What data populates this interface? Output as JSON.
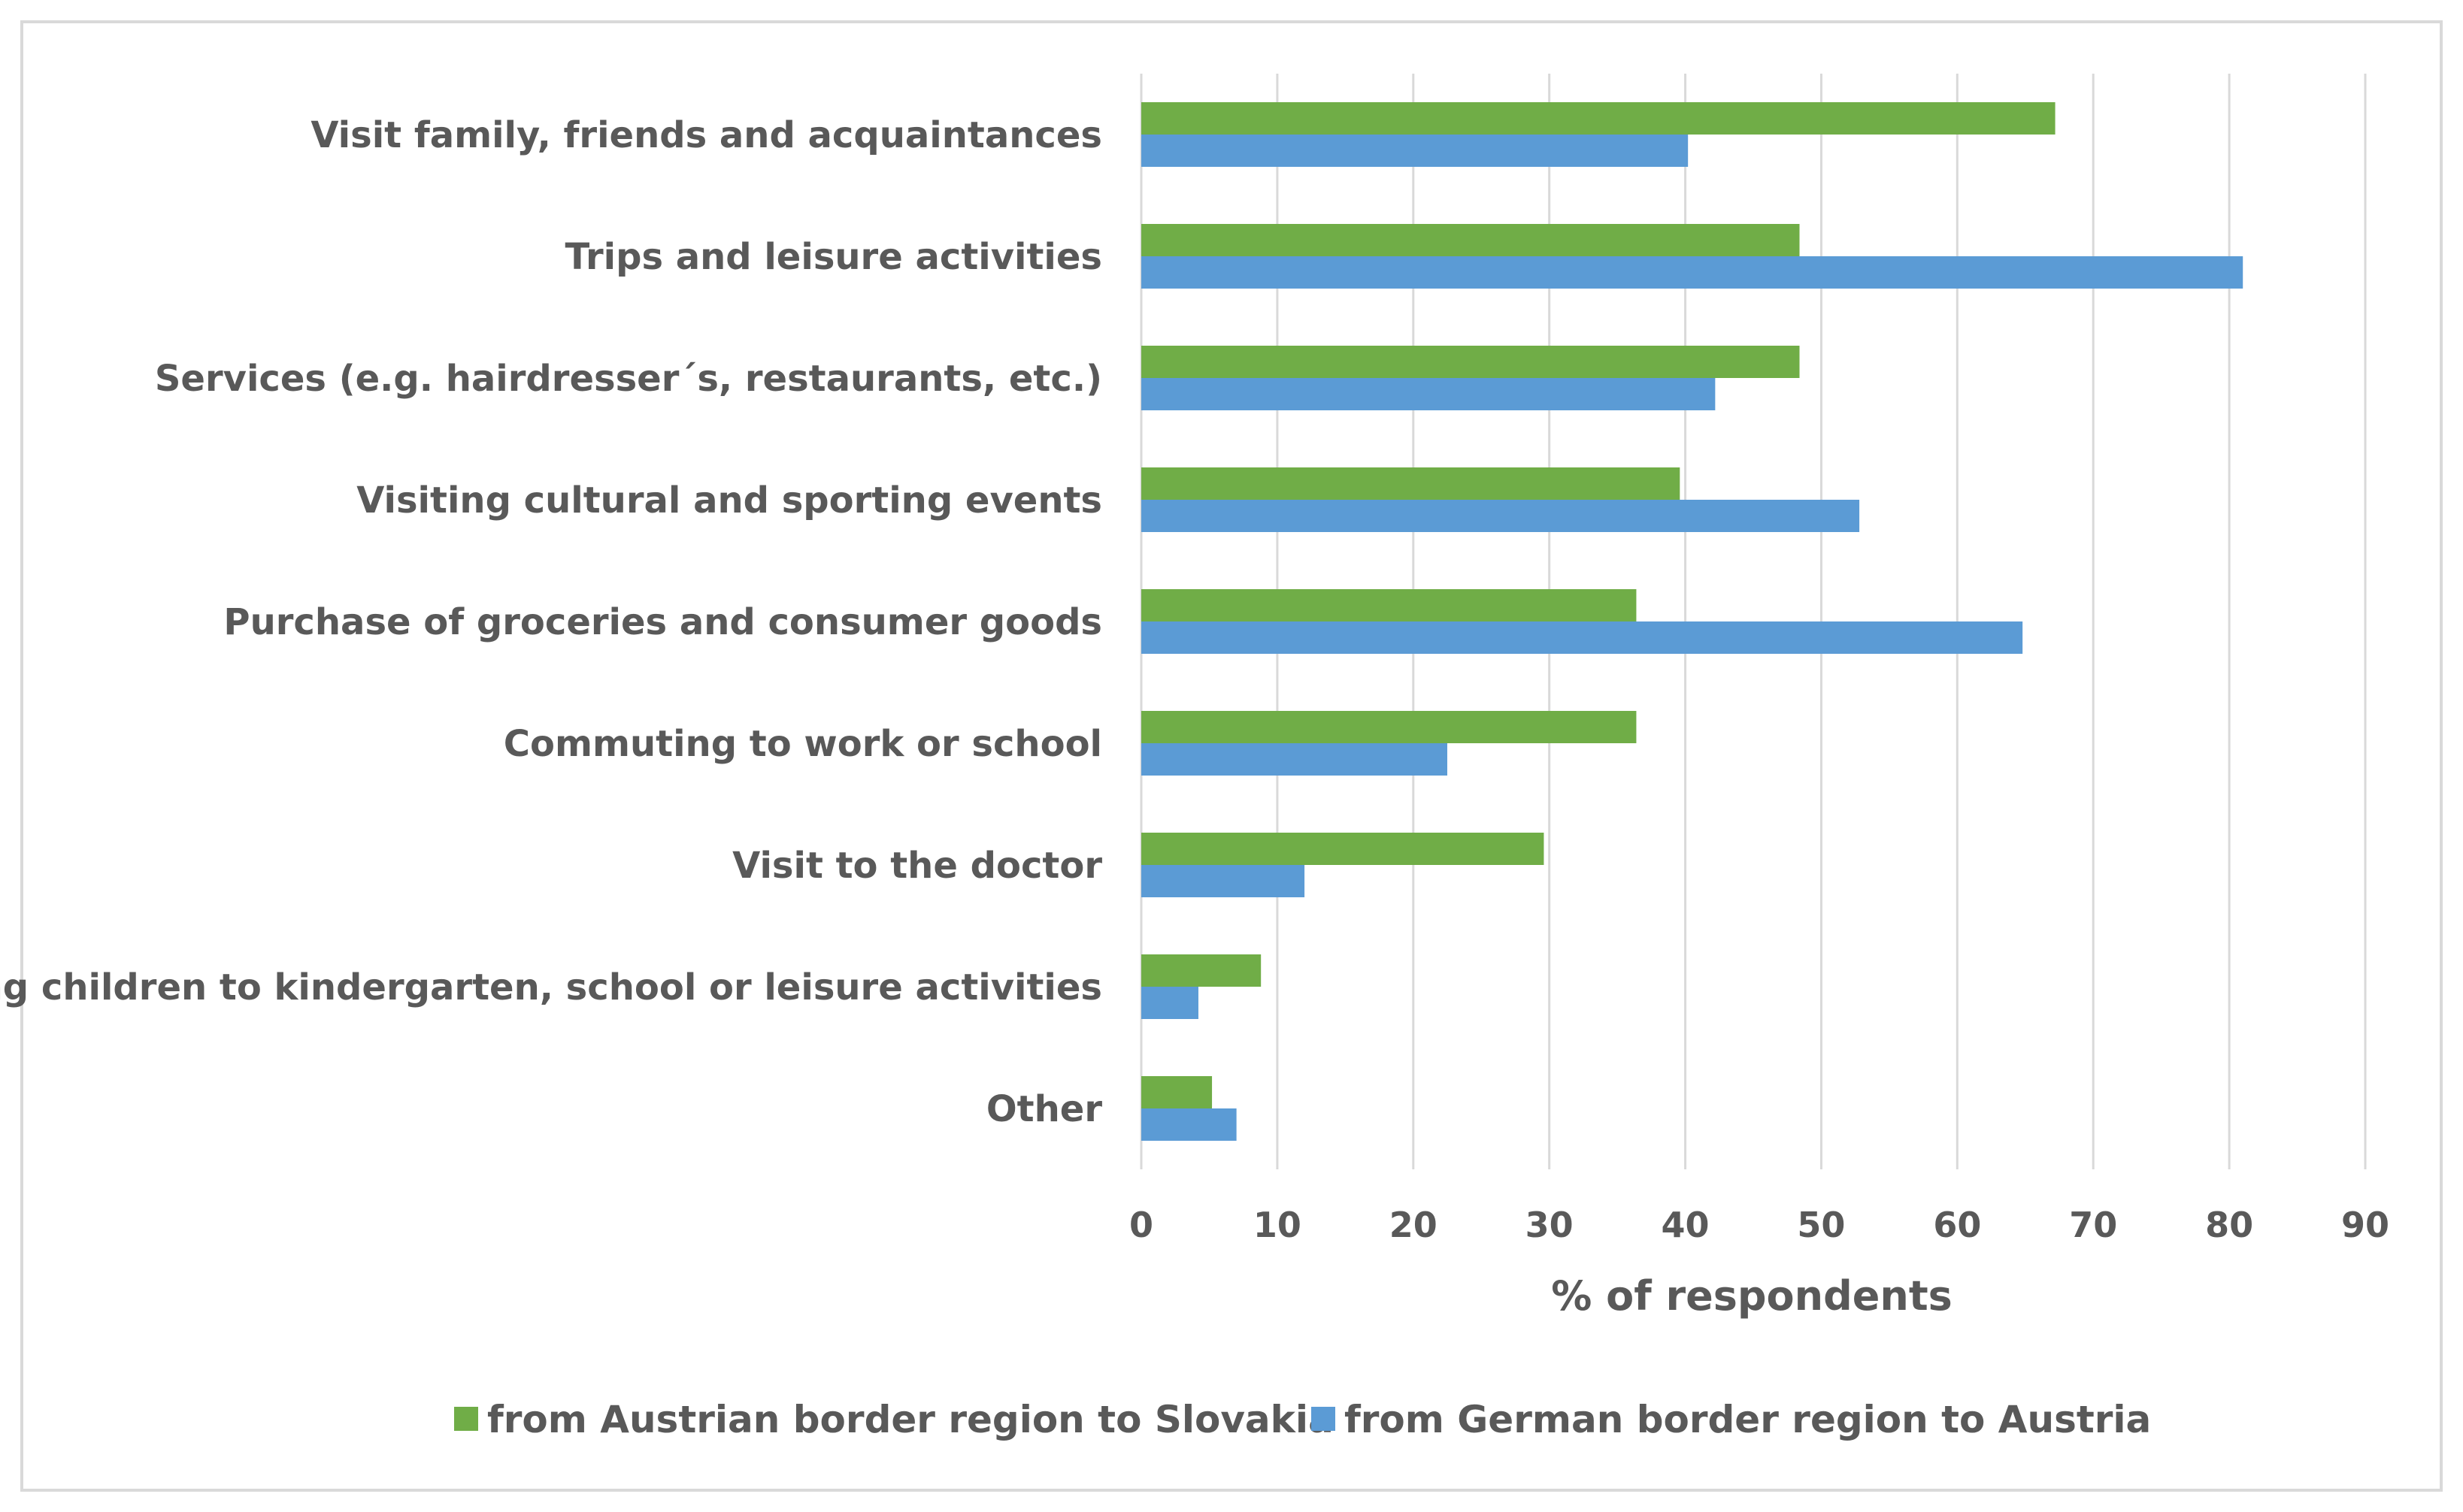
{
  "chart_data": {
    "type": "bar",
    "orientation": "horizontal",
    "title": "",
    "categories": [
      "Visit family, friends and acquaintances",
      "Trips and leisure activities",
      "Services (e.g. hairdresser´s, restaurants, etc.)",
      "Visiting cultural and sporting events",
      "Purchase of groceries and consumer goods",
      "Commuting to work or school",
      "Visit to the doctor",
      "Taking children to kindergarten, school or leisure activities",
      "Other"
    ],
    "series": [
      {
        "name": "from Austrian border region to Slovakia",
        "color": "#70ad47",
        "values": [
          67.2,
          48.4,
          48.4,
          39.6,
          36.4,
          36.4,
          29.6,
          8.8,
          5.2
        ]
      },
      {
        "name": "from German border region to Austria",
        "color": "#5b9bd5",
        "values": [
          40.2,
          81.0,
          42.2,
          52.8,
          64.8,
          22.5,
          12.0,
          4.2,
          7.0
        ]
      }
    ],
    "xlabel": "% of respondents",
    "ylabel": "",
    "xlim": [
      0,
      90
    ],
    "xticks": [
      "0",
      "10",
      "20",
      "30",
      "40",
      "50",
      "60",
      "70",
      "80",
      "90"
    ],
    "grid": "vertical",
    "legend": "bottom"
  }
}
